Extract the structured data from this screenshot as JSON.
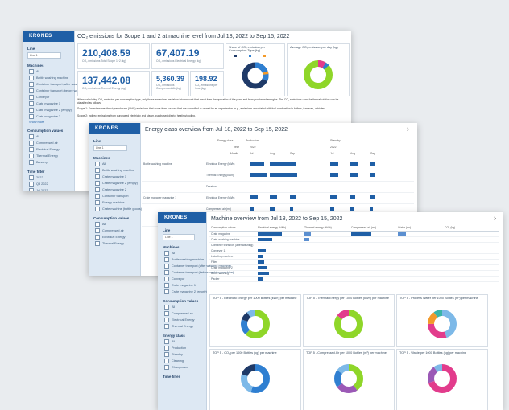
{
  "window1": {
    "logo": "KRONES",
    "title": "CO₂ emissions for Scope 1 and 2 at machine level from Jul 18, 2022 to Sep 15, 2022",
    "sidebar": {
      "line_label": "Line",
      "line_value": "Line 1",
      "machines_label": "Machines",
      "machines": [
        "All",
        "Bottle washing machine",
        "Container transport (after washing machine)",
        "Container transport (before washing machine)",
        "Conveyor",
        "Crate magazine 1",
        "Crate magazine 2 (empty)",
        "Crate magazine 2"
      ],
      "more": "Show more",
      "consumption_label": "Consumption values",
      "consumption": [
        "All",
        "Compressed air",
        "Electrical Energy",
        "Thermal Energy",
        "Brewery"
      ],
      "time_label": "Time filter",
      "time": [
        "2022",
        "Q3 2022",
        "Jul 2022",
        "Aug 2022",
        "Sep 2022"
      ]
    },
    "kpis": [
      {
        "value": "210,408.59",
        "label": "CO₂ emissions Total Scope 1+2 (kg)"
      },
      {
        "value": "67,407.19",
        "label": "CO₂ emissions Electrical Energy (kg)"
      },
      {
        "value": "137,442.08",
        "label": "CO₂ emissions Thermal Energy (kg)"
      },
      {
        "value": "5,360.39",
        "label": "CO₂ emissions Compressed Air (kg)"
      },
      {
        "value": "198.92",
        "label": "CO₂ emissions per hour (kg)"
      }
    ],
    "donut1_title": "Share of CO₂ emission per Consumption Type (kg)",
    "donut2_title": "Average CO₂ emission per day (kg)",
    "text": "When calculating CO₂ emission per consumption type, only those emissions are taken into account that result from the operation of the plant and from purchased energies. The CO₂ emissions used for the calculation can be classified as follows:",
    "scope1": "Scope 1: Emissions are direct greenhouse (GHG) emissions that occur from sources that are controlled or owned by an organization (e.g., emissions associated with fuel combustion in boilers, furnaces, vehicles).",
    "scope2": "Scope 2: Indirect emissions from purchased electricity and steam, purchased district heating/cooling."
  },
  "window2": {
    "logo": "KRONES",
    "title": "Energy class overview from Jul 18, 2022 to Sep 15, 2022",
    "sidebar": {
      "line_label": "Line",
      "line_value": "Line 1",
      "machines_label": "Machines",
      "machines": [
        "All",
        "Bottle washing machine",
        "Crate magazine 1",
        "Crate magazine 2 (empty)",
        "Crate magazine 2",
        "Container transport",
        "Energy machine",
        "Crate machine (bottle goods)"
      ],
      "consumption_label": "Consumption values",
      "consumption": [
        "All",
        "Compressed air",
        "Electrical Energy",
        "Thermal Energy"
      ]
    },
    "header": {
      "energy_class": "Energy class",
      "year": "Year",
      "month": "Month",
      "groups": [
        "Production",
        "Standby"
      ],
      "years": [
        "2022",
        "2022"
      ],
      "months": [
        "Jul",
        "Aug",
        "Sep",
        "Jul",
        "Aug",
        "Sep"
      ]
    },
    "rows": [
      {
        "machine": "Bottle washing machine",
        "value": "Electrical Energy (kWh)"
      },
      {
        "machine": "",
        "value": "Thermal Energy (kWh)"
      },
      {
        "machine": "",
        "value": "Duration"
      },
      {
        "machine": "Crate manager magazine 1",
        "value": "Electrical Energy (kWh)"
      },
      {
        "machine": "",
        "value": "Compressed air (m³)"
      },
      {
        "machine": "",
        "value": "Duration"
      }
    ]
  },
  "window3": {
    "logo": "KRONES",
    "title": "Machine overview from Jul 18, 2022 to Sep 15, 2022",
    "sidebar": {
      "line_label": "Line",
      "line_value": "Line 1",
      "machines_label": "Machines",
      "machines": [
        "All",
        "Bottle washing machine",
        "Container transport (after washing machine)",
        "Container transport (before washing machine)",
        "Conveyor",
        "Crate magazine 1",
        "Crate magazine 2 (empty)"
      ],
      "consumption_label": "Consumption values",
      "consumption": [
        "All",
        "Compressed air",
        "Electrical Energy",
        "Thermal Energy"
      ],
      "energy_label": "Energy class",
      "energy": [
        "All",
        "Production",
        "Standby",
        "Cleaning",
        "Changeover"
      ],
      "time_label": "Time filter"
    },
    "table_headers": [
      "Consumption values",
      "Electrical energy (kWh)",
      "Thermal energy (kWh)",
      "Compressed air (m³)",
      "Water (m³)",
      "CO₂ (kg)"
    ],
    "machines": [
      "Crate magazine",
      "Crate washing machine",
      "Container transport (after washing)",
      "Conveyor 1",
      "Labelling machine",
      "Filler",
      "Crate magazine 2",
      "Bottle washing",
      "Packer"
    ],
    "charts": [
      "TOP 5 - Electrical Energy per 1000 Bottles (kWh) per machine",
      "TOP 5 - Thermal Energy per 1000 Bottles (kWh) per machine",
      "TOP 5 - Process Water per 1000 Bottles (m³) per machine",
      "TOP 5 - CO₂ per 1000 Bottles (kg) per machine",
      "TOP 5 - Compressed Air per 1000 Bottles (m³) per machine",
      "TOP 5 - Waste per 1000 Bottles (kg) per machine"
    ]
  },
  "colors": {
    "brand": "#1f5fa6",
    "navy": "#1f3a68",
    "blue": "#2f7fd1",
    "lightblue": "#7db9e8",
    "green": "#8fd629",
    "pink": "#e23c8c",
    "orange": "#f39a2a",
    "teal": "#3ab5a8",
    "purple": "#9b59b6"
  }
}
